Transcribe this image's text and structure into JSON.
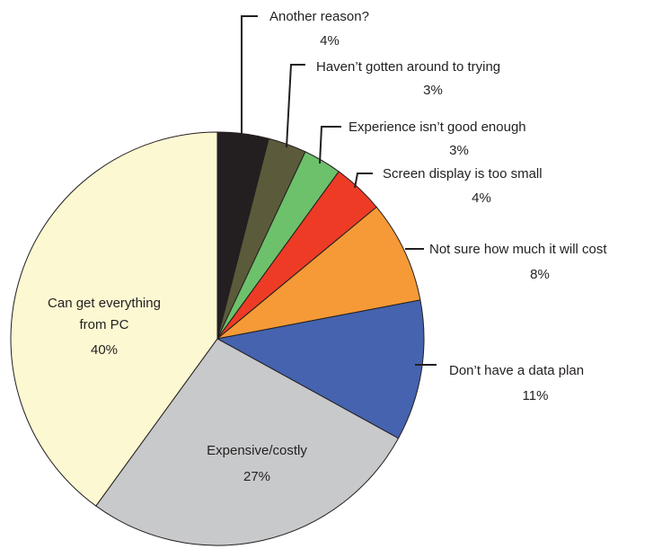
{
  "chart_data": {
    "type": "pie",
    "title": "",
    "start_angle_deg": 0,
    "direction": "clockwise",
    "slices": [
      {
        "label": "Another reason?",
        "value": 4,
        "display": "4%",
        "color": "#231f20"
      },
      {
        "label": "Haven’t gotten around to trying",
        "value": 3,
        "display": "3%",
        "color": "#5b5a3a"
      },
      {
        "label": "Experience isn’t good enough",
        "value": 3,
        "display": "3%",
        "color": "#6dc16b"
      },
      {
        "label": "Screen display is too small",
        "value": 4,
        "display": "4%",
        "color": "#ed3b26"
      },
      {
        "label": "Not sure how much it will cost",
        "value": 8,
        "display": "8%",
        "color": "#f59a36"
      },
      {
        "label": "Don’t have a data plan",
        "value": 11,
        "display": "11%",
        "color": "#4563ae"
      },
      {
        "label": "Expensive/costly",
        "value": 27,
        "display": "27%",
        "color": "#c8c9cb"
      },
      {
        "label": "Can get everything from PC",
        "value": 40,
        "display": "40%",
        "color": "#fcf8d2"
      }
    ]
  }
}
